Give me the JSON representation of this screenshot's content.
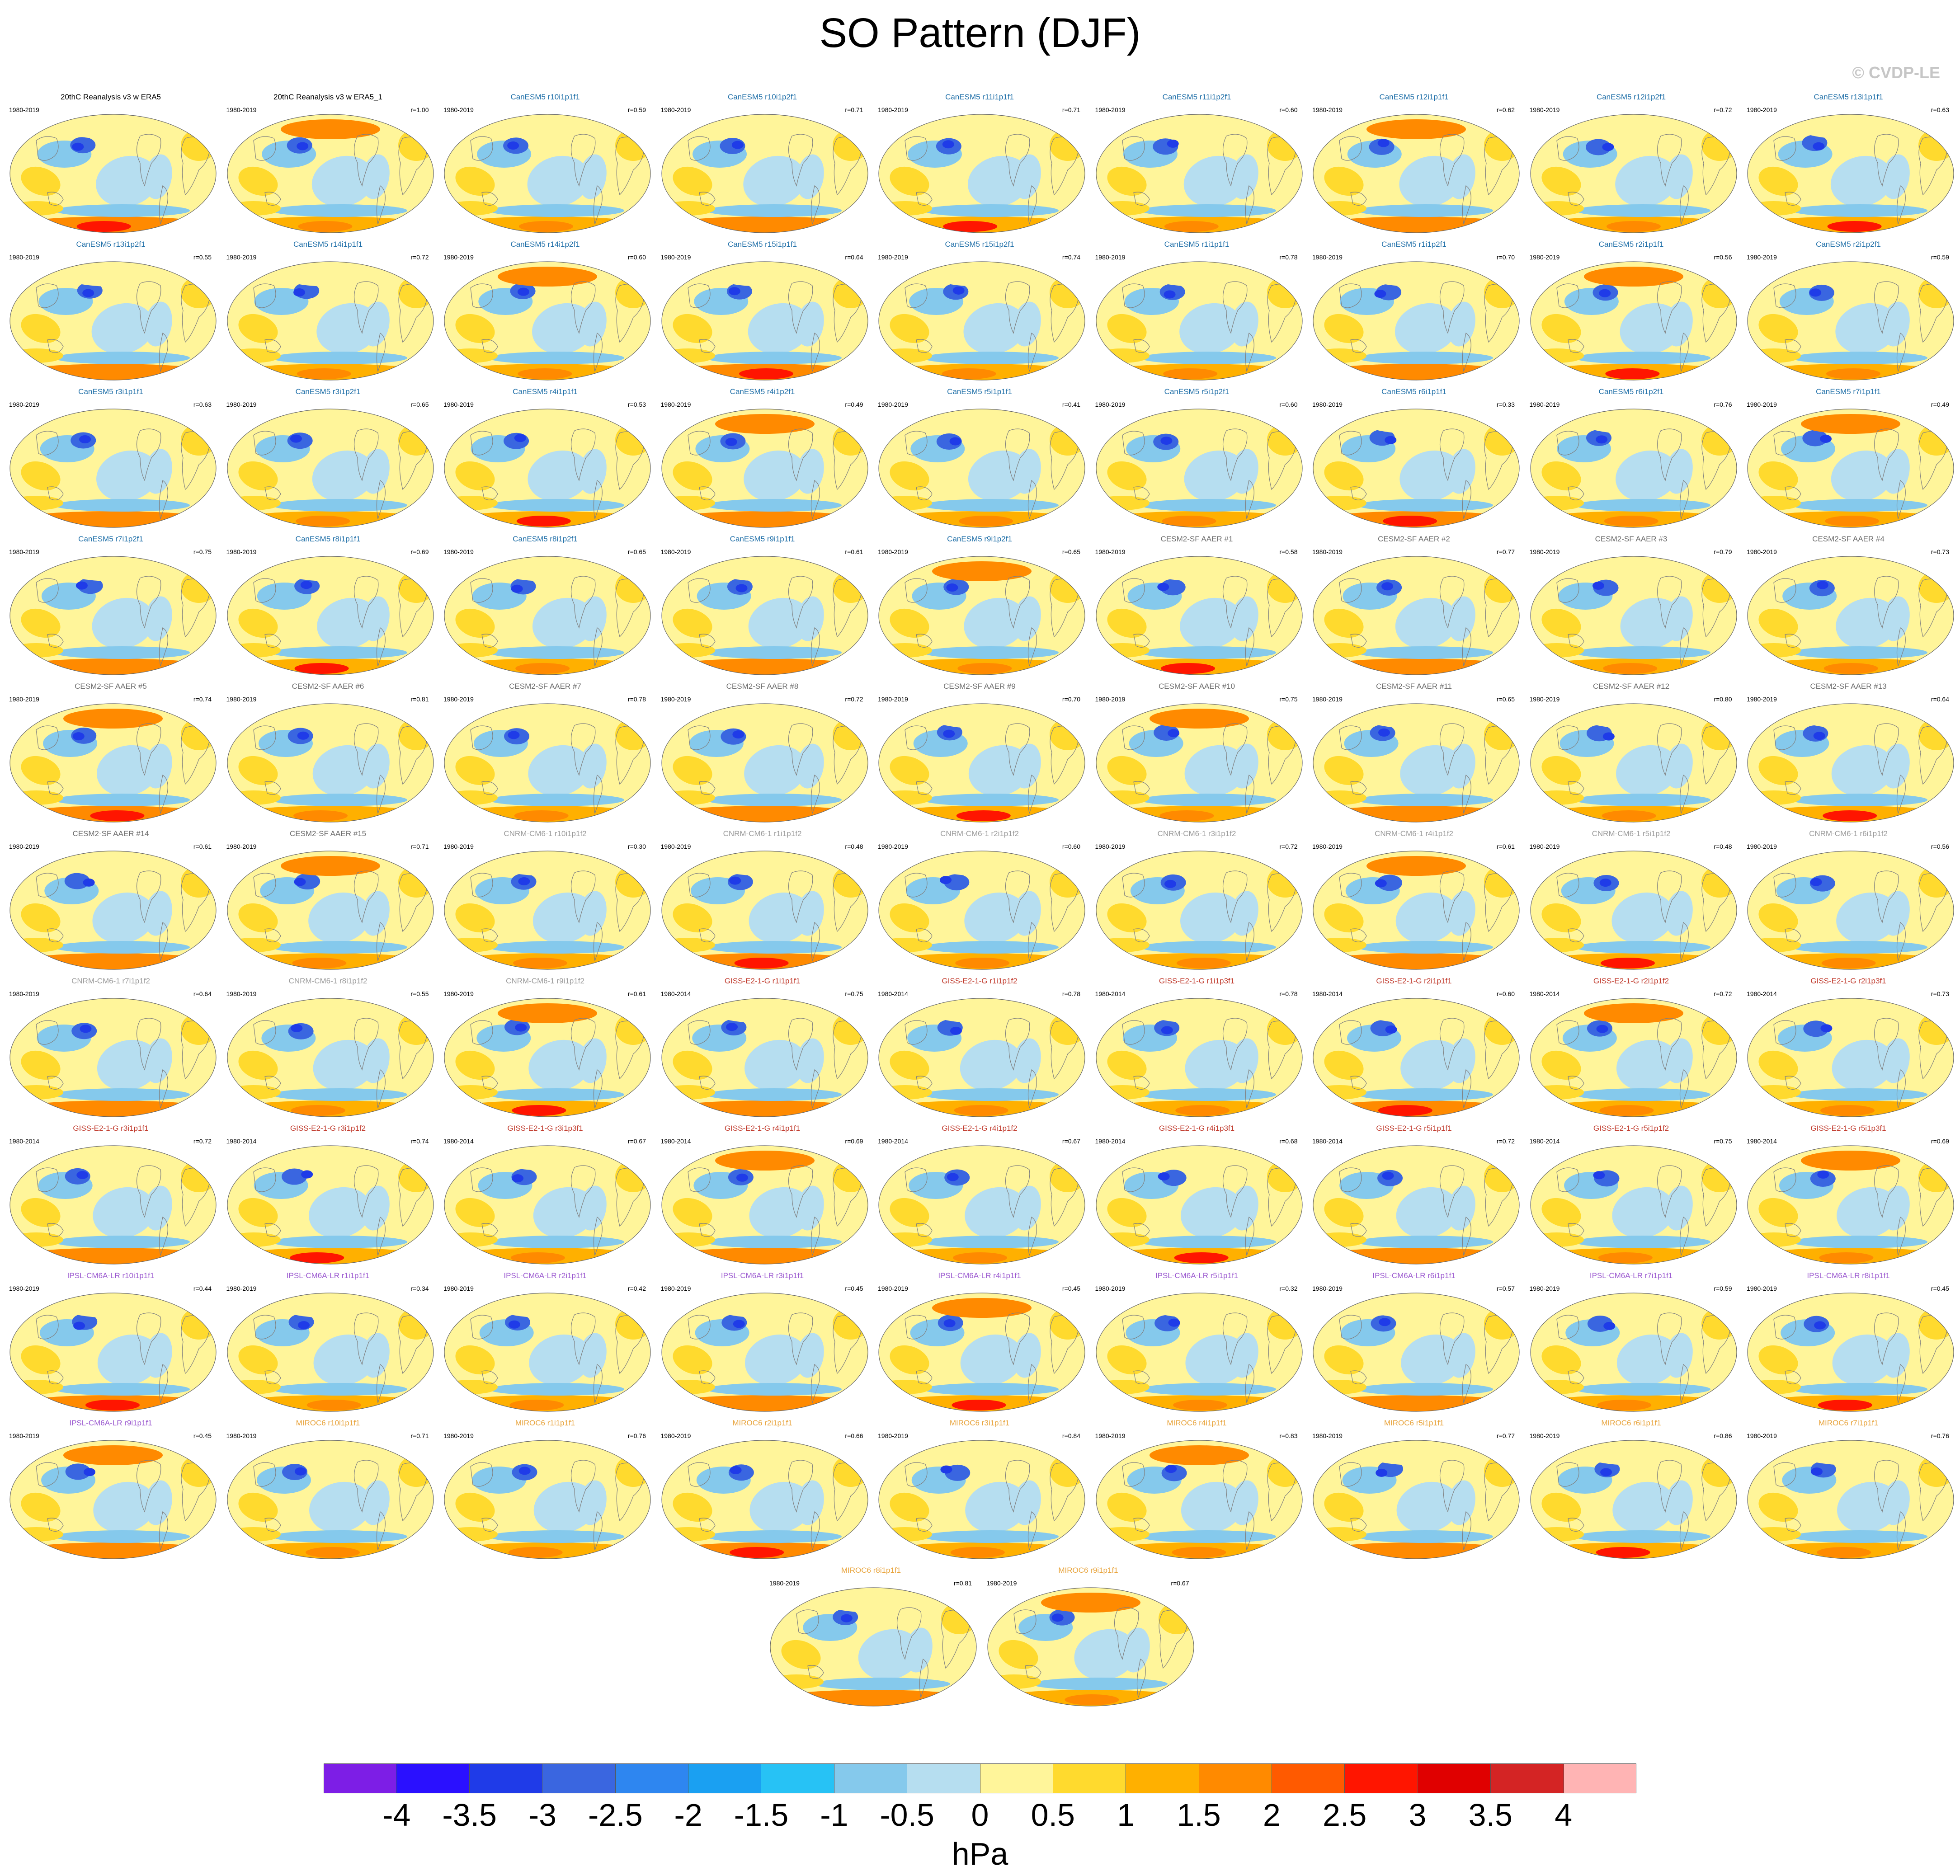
{
  "title": "SO Pattern (DJF)",
  "credit": "© CVDP-LE",
  "colors": {
    "obs": "#000000",
    "CanESM5": "#1f6fa8",
    "CESM2-SF AAER": "#6c6c6c",
    "CNRM-CM6-1": "#9a9a9a",
    "GISS-E2-1-G": "#c0392b",
    "IPSL-CM6A-LR": "#9b59d0",
    "MIROC6": "#e8a33a",
    "land_outline": "#808080"
  },
  "panels": [
    {
      "title": "20thC Reanalysis v3 w ERA5",
      "years": "1980-2019",
      "corr": "",
      "model": "obs"
    },
    {
      "title": "20thC Reanalysis v3 w ERA5_1",
      "years": "1980-2019",
      "corr": "r=1.00",
      "model": "obs"
    },
    {
      "title": "CanESM5 r10i1p1f1",
      "years": "1980-2019",
      "corr": "r=0.59",
      "model": "CanESM5"
    },
    {
      "title": "CanESM5 r10i1p2f1",
      "years": "1980-2019",
      "corr": "r=0.71",
      "model": "CanESM5"
    },
    {
      "title": "CanESM5 r11i1p1f1",
      "years": "1980-2019",
      "corr": "r=0.71",
      "model": "CanESM5"
    },
    {
      "title": "CanESM5 r11i1p2f1",
      "years": "1980-2019",
      "corr": "r=0.60",
      "model": "CanESM5"
    },
    {
      "title": "CanESM5 r12i1p1f1",
      "years": "1980-2019",
      "corr": "r=0.62",
      "model": "CanESM5"
    },
    {
      "title": "CanESM5 r12i1p2f1",
      "years": "1980-2019",
      "corr": "r=0.72",
      "model": "CanESM5"
    },
    {
      "title": "CanESM5 r13i1p1f1",
      "years": "1980-2019",
      "corr": "r=0.63",
      "model": "CanESM5"
    },
    {
      "title": "CanESM5 r13i1p2f1",
      "years": "1980-2019",
      "corr": "r=0.55",
      "model": "CanESM5"
    },
    {
      "title": "CanESM5 r14i1p1f1",
      "years": "1980-2019",
      "corr": "r=0.72",
      "model": "CanESM5"
    },
    {
      "title": "CanESM5 r14i1p2f1",
      "years": "1980-2019",
      "corr": "r=0.60",
      "model": "CanESM5"
    },
    {
      "title": "CanESM5 r15i1p1f1",
      "years": "1980-2019",
      "corr": "r=0.64",
      "model": "CanESM5"
    },
    {
      "title": "CanESM5 r15i1p2f1",
      "years": "1980-2019",
      "corr": "r=0.74",
      "model": "CanESM5"
    },
    {
      "title": "CanESM5 r1i1p1f1",
      "years": "1980-2019",
      "corr": "r=0.78",
      "model": "CanESM5"
    },
    {
      "title": "CanESM5 r1i1p2f1",
      "years": "1980-2019",
      "corr": "r=0.70",
      "model": "CanESM5"
    },
    {
      "title": "CanESM5 r2i1p1f1",
      "years": "1980-2019",
      "corr": "r=0.56",
      "model": "CanESM5"
    },
    {
      "title": "CanESM5 r2i1p2f1",
      "years": "1980-2019",
      "corr": "r=0.59",
      "model": "CanESM5"
    },
    {
      "title": "CanESM5 r3i1p1f1",
      "years": "1980-2019",
      "corr": "r=0.63",
      "model": "CanESM5"
    },
    {
      "title": "CanESM5 r3i1p2f1",
      "years": "1980-2019",
      "corr": "r=0.65",
      "model": "CanESM5"
    },
    {
      "title": "CanESM5 r4i1p1f1",
      "years": "1980-2019",
      "corr": "r=0.53",
      "model": "CanESM5"
    },
    {
      "title": "CanESM5 r4i1p2f1",
      "years": "1980-2019",
      "corr": "r=0.49",
      "model": "CanESM5"
    },
    {
      "title": "CanESM5 r5i1p1f1",
      "years": "1980-2019",
      "corr": "r=0.41",
      "model": "CanESM5"
    },
    {
      "title": "CanESM5 r5i1p2f1",
      "years": "1980-2019",
      "corr": "r=0.60",
      "model": "CanESM5"
    },
    {
      "title": "CanESM5 r6i1p1f1",
      "years": "1980-2019",
      "corr": "r=0.33",
      "model": "CanESM5"
    },
    {
      "title": "CanESM5 r6i1p2f1",
      "years": "1980-2019",
      "corr": "r=0.76",
      "model": "CanESM5"
    },
    {
      "title": "CanESM5 r7i1p1f1",
      "years": "1980-2019",
      "corr": "r=0.49",
      "model": "CanESM5"
    },
    {
      "title": "CanESM5 r7i1p2f1",
      "years": "1980-2019",
      "corr": "r=0.75",
      "model": "CanESM5"
    },
    {
      "title": "CanESM5 r8i1p1f1",
      "years": "1980-2019",
      "corr": "r=0.69",
      "model": "CanESM5"
    },
    {
      "title": "CanESM5 r8i1p2f1",
      "years": "1980-2019",
      "corr": "r=0.65",
      "model": "CanESM5"
    },
    {
      "title": "CanESM5 r9i1p1f1",
      "years": "1980-2019",
      "corr": "r=0.61",
      "model": "CanESM5"
    },
    {
      "title": "CanESM5 r9i1p2f1",
      "years": "1980-2019",
      "corr": "r=0.65",
      "model": "CanESM5"
    },
    {
      "title": "CESM2-SF AAER #1",
      "years": "1980-2019",
      "corr": "r=0.58",
      "model": "CESM2-SF AAER"
    },
    {
      "title": "CESM2-SF AAER #2",
      "years": "1980-2019",
      "corr": "r=0.77",
      "model": "CESM2-SF AAER"
    },
    {
      "title": "CESM2-SF AAER #3",
      "years": "1980-2019",
      "corr": "r=0.79",
      "model": "CESM2-SF AAER"
    },
    {
      "title": "CESM2-SF AAER #4",
      "years": "1980-2019",
      "corr": "r=0.73",
      "model": "CESM2-SF AAER"
    },
    {
      "title": "CESM2-SF AAER #5",
      "years": "1980-2019",
      "corr": "r=0.74",
      "model": "CESM2-SF AAER"
    },
    {
      "title": "CESM2-SF AAER #6",
      "years": "1980-2019",
      "corr": "r=0.81",
      "model": "CESM2-SF AAER"
    },
    {
      "title": "CESM2-SF AAER #7",
      "years": "1980-2019",
      "corr": "r=0.78",
      "model": "CESM2-SF AAER"
    },
    {
      "title": "CESM2-SF AAER #8",
      "years": "1980-2019",
      "corr": "r=0.72",
      "model": "CESM2-SF AAER"
    },
    {
      "title": "CESM2-SF AAER #9",
      "years": "1980-2019",
      "corr": "r=0.70",
      "model": "CESM2-SF AAER"
    },
    {
      "title": "CESM2-SF AAER #10",
      "years": "1980-2019",
      "corr": "r=0.75",
      "model": "CESM2-SF AAER"
    },
    {
      "title": "CESM2-SF AAER #11",
      "years": "1980-2019",
      "corr": "r=0.65",
      "model": "CESM2-SF AAER"
    },
    {
      "title": "CESM2-SF AAER #12",
      "years": "1980-2019",
      "corr": "r=0.80",
      "model": "CESM2-SF AAER"
    },
    {
      "title": "CESM2-SF AAER #13",
      "years": "1980-2019",
      "corr": "r=0.64",
      "model": "CESM2-SF AAER"
    },
    {
      "title": "CESM2-SF AAER #14",
      "years": "1980-2019",
      "corr": "r=0.61",
      "model": "CESM2-SF AAER"
    },
    {
      "title": "CESM2-SF AAER #15",
      "years": "1980-2019",
      "corr": "r=0.71",
      "model": "CESM2-SF AAER"
    },
    {
      "title": "CNRM-CM6-1 r10i1p1f2",
      "years": "1980-2019",
      "corr": "r=0.30",
      "model": "CNRM-CM6-1"
    },
    {
      "title": "CNRM-CM6-1 r1i1p1f2",
      "years": "1980-2019",
      "corr": "r=0.48",
      "model": "CNRM-CM6-1"
    },
    {
      "title": "CNRM-CM6-1 r2i1p1f2",
      "years": "1980-2019",
      "corr": "r=0.60",
      "model": "CNRM-CM6-1"
    },
    {
      "title": "CNRM-CM6-1 r3i1p1f2",
      "years": "1980-2019",
      "corr": "r=0.72",
      "model": "CNRM-CM6-1"
    },
    {
      "title": "CNRM-CM6-1 r4i1p1f2",
      "years": "1980-2019",
      "corr": "r=0.61",
      "model": "CNRM-CM6-1"
    },
    {
      "title": "CNRM-CM6-1 r5i1p1f2",
      "years": "1980-2019",
      "corr": "r=0.48",
      "model": "CNRM-CM6-1"
    },
    {
      "title": "CNRM-CM6-1 r6i1p1f2",
      "years": "1980-2019",
      "corr": "r=0.56",
      "model": "CNRM-CM6-1"
    },
    {
      "title": "CNRM-CM6-1 r7i1p1f2",
      "years": "1980-2019",
      "corr": "r=0.64",
      "model": "CNRM-CM6-1"
    },
    {
      "title": "CNRM-CM6-1 r8i1p1f2",
      "years": "1980-2019",
      "corr": "r=0.55",
      "model": "CNRM-CM6-1"
    },
    {
      "title": "CNRM-CM6-1 r9i1p1f2",
      "years": "1980-2019",
      "corr": "r=0.61",
      "model": "CNRM-CM6-1"
    },
    {
      "title": "GISS-E2-1-G r1i1p1f1",
      "years": "1980-2014",
      "corr": "r=0.75",
      "model": "GISS-E2-1-G"
    },
    {
      "title": "GISS-E2-1-G r1i1p1f2",
      "years": "1980-2014",
      "corr": "r=0.78",
      "model": "GISS-E2-1-G"
    },
    {
      "title": "GISS-E2-1-G r1i1p3f1",
      "years": "1980-2014",
      "corr": "r=0.78",
      "model": "GISS-E2-1-G"
    },
    {
      "title": "GISS-E2-1-G r2i1p1f1",
      "years": "1980-2014",
      "corr": "r=0.60",
      "model": "GISS-E2-1-G"
    },
    {
      "title": "GISS-E2-1-G r2i1p1f2",
      "years": "1980-2014",
      "corr": "r=0.72",
      "model": "GISS-E2-1-G"
    },
    {
      "title": "GISS-E2-1-G r2i1p3f1",
      "years": "1980-2014",
      "corr": "r=0.73",
      "model": "GISS-E2-1-G"
    },
    {
      "title": "GISS-E2-1-G r3i1p1f1",
      "years": "1980-2014",
      "corr": "r=0.72",
      "model": "GISS-E2-1-G"
    },
    {
      "title": "GISS-E2-1-G r3i1p1f2",
      "years": "1980-2014",
      "corr": "r=0.74",
      "model": "GISS-E2-1-G"
    },
    {
      "title": "GISS-E2-1-G r3i1p3f1",
      "years": "1980-2014",
      "corr": "r=0.67",
      "model": "GISS-E2-1-G"
    },
    {
      "title": "GISS-E2-1-G r4i1p1f1",
      "years": "1980-2014",
      "corr": "r=0.69",
      "model": "GISS-E2-1-G"
    },
    {
      "title": "GISS-E2-1-G r4i1p1f2",
      "years": "1980-2014",
      "corr": "r=0.67",
      "model": "GISS-E2-1-G"
    },
    {
      "title": "GISS-E2-1-G r4i1p3f1",
      "years": "1980-2014",
      "corr": "r=0.68",
      "model": "GISS-E2-1-G"
    },
    {
      "title": "GISS-E2-1-G r5i1p1f1",
      "years": "1980-2014",
      "corr": "r=0.72",
      "model": "GISS-E2-1-G"
    },
    {
      "title": "GISS-E2-1-G r5i1p1f2",
      "years": "1980-2014",
      "corr": "r=0.75",
      "model": "GISS-E2-1-G"
    },
    {
      "title": "GISS-E2-1-G r5i1p3f1",
      "years": "1980-2014",
      "corr": "r=0.69",
      "model": "GISS-E2-1-G"
    },
    {
      "title": "IPSL-CM6A-LR r10i1p1f1",
      "years": "1980-2019",
      "corr": "r=0.44",
      "model": "IPSL-CM6A-LR"
    },
    {
      "title": "IPSL-CM6A-LR r1i1p1f1",
      "years": "1980-2019",
      "corr": "r=0.34",
      "model": "IPSL-CM6A-LR"
    },
    {
      "title": "IPSL-CM6A-LR r2i1p1f1",
      "years": "1980-2019",
      "corr": "r=0.42",
      "model": "IPSL-CM6A-LR"
    },
    {
      "title": "IPSL-CM6A-LR r3i1p1f1",
      "years": "1980-2019",
      "corr": "r=0.45",
      "model": "IPSL-CM6A-LR"
    },
    {
      "title": "IPSL-CM6A-LR r4i1p1f1",
      "years": "1980-2019",
      "corr": "r=0.45",
      "model": "IPSL-CM6A-LR"
    },
    {
      "title": "IPSL-CM6A-LR r5i1p1f1",
      "years": "1980-2019",
      "corr": "r=0.32",
      "model": "IPSL-CM6A-LR"
    },
    {
      "title": "IPSL-CM6A-LR r6i1p1f1",
      "years": "1980-2019",
      "corr": "r=0.57",
      "model": "IPSL-CM6A-LR"
    },
    {
      "title": "IPSL-CM6A-LR r7i1p1f1",
      "years": "1980-2019",
      "corr": "r=0.59",
      "model": "IPSL-CM6A-LR"
    },
    {
      "title": "IPSL-CM6A-LR r8i1p1f1",
      "years": "1980-2019",
      "corr": "r=0.45",
      "model": "IPSL-CM6A-LR"
    },
    {
      "title": "IPSL-CM6A-LR r9i1p1f1",
      "years": "1980-2019",
      "corr": "r=0.45",
      "model": "IPSL-CM6A-LR"
    },
    {
      "title": "MIROC6 r10i1p1f1",
      "years": "1980-2019",
      "corr": "r=0.71",
      "model": "MIROC6"
    },
    {
      "title": "MIROC6 r1i1p1f1",
      "years": "1980-2019",
      "corr": "r=0.76",
      "model": "MIROC6"
    },
    {
      "title": "MIROC6 r2i1p1f1",
      "years": "1980-2019",
      "corr": "r=0.66",
      "model": "MIROC6"
    },
    {
      "title": "MIROC6 r3i1p1f1",
      "years": "1980-2019",
      "corr": "r=0.84",
      "model": "MIROC6"
    },
    {
      "title": "MIROC6 r4i1p1f1",
      "years": "1980-2019",
      "corr": "r=0.83",
      "model": "MIROC6"
    },
    {
      "title": "MIROC6 r5i1p1f1",
      "years": "1980-2019",
      "corr": "r=0.77",
      "model": "MIROC6"
    },
    {
      "title": "MIROC6 r6i1p1f1",
      "years": "1980-2019",
      "corr": "r=0.86",
      "model": "MIROC6"
    },
    {
      "title": "MIROC6 r7i1p1f1",
      "years": "1980-2019",
      "corr": "r=0.76",
      "model": "MIROC6"
    },
    {
      "title": "MIROC6 r8i1p1f1",
      "years": "1980-2019",
      "corr": "r=0.81",
      "model": "MIROC6"
    },
    {
      "title": "MIROC6 r9i1p1f1",
      "years": "1980-2019",
      "corr": "r=0.67",
      "model": "MIROC6"
    }
  ],
  "colorbar": {
    "units": "hPa",
    "tick_labels": [
      "-4",
      "-3.5",
      "-3",
      "-2.5",
      "-2",
      "-1.5",
      "-1",
      "-0.5",
      "0",
      "0.5",
      "1",
      "1.5",
      "2",
      "2.5",
      "3",
      "3.5",
      "4"
    ],
    "colors": [
      "#7d1ee6",
      "#2a10ff",
      "#1f3be8",
      "#3a66e0",
      "#2e86f0",
      "#1aa0f2",
      "#27c2f5",
      "#85c9ec",
      "#b6def0",
      "#fff59a",
      "#ffda2e",
      "#ffb000",
      "#ff8a00",
      "#ff5a00",
      "#ff1500",
      "#e00000",
      "#d42424",
      "#ffb4b4"
    ]
  }
}
